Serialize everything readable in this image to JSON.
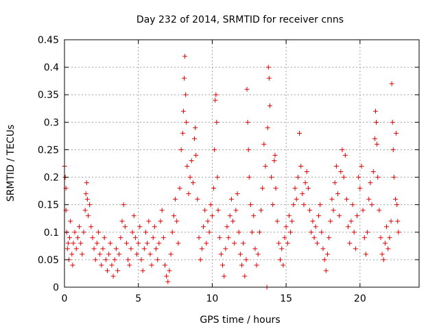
{
  "chart_data": {
    "type": "scatter",
    "title": "Day 232 of 2014, SRMTID for receiver cnns",
    "xlabel": "GPS time / hours",
    "ylabel": "SRMTID / TECUs",
    "xlim": [
      0,
      24
    ],
    "ylim": [
      0,
      0.45
    ],
    "x_ticks": [
      0,
      5,
      10,
      15,
      20
    ],
    "x_tick_labels": [
      "0",
      "5",
      "10",
      "15",
      "20"
    ],
    "y_ticks": [
      0,
      0.05,
      0.1,
      0.15,
      0.2,
      0.25,
      0.3,
      0.35,
      0.4,
      0.45
    ],
    "y_tick_labels": [
      "0",
      "0.05",
      "0.1",
      "0.15",
      "0.2",
      "0.25",
      "0.3",
      "0.35",
      "0.4",
      "0.45"
    ],
    "grid": true,
    "marker": "+",
    "marker_color": "#e00000",
    "series": [
      {
        "name": "SRMTID",
        "points": [
          [
            0.0,
            0.22
          ],
          [
            0.05,
            0.2
          ],
          [
            0.1,
            0.18
          ],
          [
            0.1,
            0.14
          ],
          [
            0.15,
            0.1
          ],
          [
            0.2,
            0.07
          ],
          [
            0.25,
            0.08
          ],
          [
            0.3,
            0.05
          ],
          [
            0.35,
            0.09
          ],
          [
            0.4,
            0.12
          ],
          [
            0.5,
            0.06
          ],
          [
            0.55,
            0.04
          ],
          [
            0.6,
            0.08
          ],
          [
            0.7,
            0.1
          ],
          [
            0.8,
            0.07
          ],
          [
            0.9,
            0.09
          ],
          [
            1.0,
            0.11
          ],
          [
            1.1,
            0.08
          ],
          [
            1.2,
            0.06
          ],
          [
            1.3,
            0.1
          ],
          [
            1.4,
            0.14
          ],
          [
            1.45,
            0.17
          ],
          [
            1.5,
            0.19
          ],
          [
            1.55,
            0.16
          ],
          [
            1.6,
            0.13
          ],
          [
            1.7,
            0.15
          ],
          [
            1.8,
            0.11
          ],
          [
            1.9,
            0.09
          ],
          [
            2.0,
            0.07
          ],
          [
            2.1,
            0.05
          ],
          [
            2.2,
            0.08
          ],
          [
            2.3,
            0.1
          ],
          [
            2.4,
            0.06
          ],
          [
            2.5,
            0.04
          ],
          [
            2.6,
            0.07
          ],
          [
            2.7,
            0.09
          ],
          [
            2.8,
            0.05
          ],
          [
            2.9,
            0.03
          ],
          [
            3.0,
            0.06
          ],
          [
            3.1,
            0.08
          ],
          [
            3.2,
            0.04
          ],
          [
            3.3,
            0.02
          ],
          [
            3.4,
            0.05
          ],
          [
            3.5,
            0.07
          ],
          [
            3.6,
            0.03
          ],
          [
            3.7,
            0.06
          ],
          [
            3.8,
            0.09
          ],
          [
            3.9,
            0.12
          ],
          [
            4.0,
            0.15
          ],
          [
            4.1,
            0.11
          ],
          [
            4.2,
            0.08
          ],
          [
            4.3,
            0.05
          ],
          [
            4.4,
            0.04
          ],
          [
            4.5,
            0.07
          ],
          [
            4.6,
            0.1
          ],
          [
            4.7,
            0.13
          ],
          [
            4.8,
            0.09
          ],
          [
            4.9,
            0.06
          ],
          [
            5.0,
            0.08
          ],
          [
            5.1,
            0.11
          ],
          [
            5.2,
            0.05
          ],
          [
            5.3,
            0.03
          ],
          [
            5.4,
            0.07
          ],
          [
            5.5,
            0.1
          ],
          [
            5.6,
            0.08
          ],
          [
            5.7,
            0.12
          ],
          [
            5.8,
            0.06
          ],
          [
            5.9,
            0.04
          ],
          [
            6.0,
            0.09
          ],
          [
            6.1,
            0.11
          ],
          [
            6.2,
            0.07
          ],
          [
            6.3,
            0.05
          ],
          [
            6.4,
            0.08
          ],
          [
            6.5,
            0.12
          ],
          [
            6.6,
            0.14
          ],
          [
            6.7,
            0.09
          ],
          [
            6.8,
            0.04
          ],
          [
            6.9,
            0.02
          ],
          [
            7.0,
            0.01
          ],
          [
            7.1,
            0.03
          ],
          [
            7.2,
            0.06
          ],
          [
            7.3,
            0.1
          ],
          [
            7.4,
            0.13
          ],
          [
            7.5,
            0.16
          ],
          [
            7.6,
            0.12
          ],
          [
            7.7,
            0.08
          ],
          [
            7.8,
            0.18
          ],
          [
            7.9,
            0.25
          ],
          [
            8.0,
            0.28
          ],
          [
            8.05,
            0.32
          ],
          [
            8.1,
            0.38
          ],
          [
            8.15,
            0.42
          ],
          [
            8.2,
            0.35
          ],
          [
            8.25,
            0.3
          ],
          [
            8.3,
            0.22
          ],
          [
            8.4,
            0.17
          ],
          [
            8.5,
            0.2
          ],
          [
            8.6,
            0.23
          ],
          [
            8.7,
            0.19
          ],
          [
            8.8,
            0.27
          ],
          [
            8.85,
            0.29
          ],
          [
            8.9,
            0.24
          ],
          [
            9.0,
            0.16
          ],
          [
            9.1,
            0.09
          ],
          [
            9.2,
            0.05
          ],
          [
            9.3,
            0.07
          ],
          [
            9.4,
            0.11
          ],
          [
            9.5,
            0.14
          ],
          [
            9.6,
            0.08
          ],
          [
            9.7,
            0.12
          ],
          [
            9.8,
            0.1
          ],
          [
            9.9,
            0.15
          ],
          [
            10.0,
            0.13
          ],
          [
            10.1,
            0.18
          ],
          [
            10.15,
            0.25
          ],
          [
            10.2,
            0.34
          ],
          [
            10.25,
            0.35
          ],
          [
            10.3,
            0.3
          ],
          [
            10.35,
            0.2
          ],
          [
            10.4,
            0.14
          ],
          [
            10.5,
            0.09
          ],
          [
            10.6,
            0.06
          ],
          [
            10.7,
            0.04
          ],
          [
            10.8,
            0.02
          ],
          [
            10.9,
            0.07
          ],
          [
            11.0,
            0.11
          ],
          [
            11.1,
            0.09
          ],
          [
            11.2,
            0.13
          ],
          [
            11.3,
            0.16
          ],
          [
            11.4,
            0.12
          ],
          [
            11.5,
            0.08
          ],
          [
            11.6,
            0.14
          ],
          [
            11.7,
            0.17
          ],
          [
            11.8,
            0.1
          ],
          [
            11.9,
            0.06
          ],
          [
            12.0,
            0.04
          ],
          [
            12.1,
            0.08
          ],
          [
            12.2,
            0.02
          ],
          [
            12.3,
            0.05
          ],
          [
            12.35,
            0.36
          ],
          [
            12.4,
            0.3
          ],
          [
            12.45,
            0.25
          ],
          [
            12.5,
            0.2
          ],
          [
            12.6,
            0.15
          ],
          [
            12.7,
            0.1
          ],
          [
            12.8,
            0.13
          ],
          [
            12.9,
            0.07
          ],
          [
            13.0,
            0.04
          ],
          [
            13.1,
            0.06
          ],
          [
            13.2,
            0.1
          ],
          [
            13.3,
            0.14
          ],
          [
            13.4,
            0.18
          ],
          [
            13.5,
            0.26
          ],
          [
            13.6,
            0.22
          ],
          [
            13.7,
            0.0
          ],
          [
            13.75,
            0.29
          ],
          [
            13.8,
            0.4
          ],
          [
            13.85,
            0.38
          ],
          [
            13.9,
            0.33
          ],
          [
            14.0,
            0.2
          ],
          [
            14.1,
            0.15
          ],
          [
            14.2,
            0.23
          ],
          [
            14.25,
            0.24
          ],
          [
            14.3,
            0.18
          ],
          [
            14.4,
            0.12
          ],
          [
            14.5,
            0.08
          ],
          [
            14.6,
            0.05
          ],
          [
            14.7,
            0.07
          ],
          [
            14.8,
            0.04
          ],
          [
            14.9,
            0.09
          ],
          [
            15.0,
            0.11
          ],
          [
            15.1,
            0.08
          ],
          [
            15.2,
            0.13
          ],
          [
            15.3,
            0.1
          ],
          [
            15.4,
            0.12
          ],
          [
            15.5,
            0.15
          ],
          [
            15.6,
            0.18
          ],
          [
            15.7,
            0.16
          ],
          [
            15.8,
            0.2
          ],
          [
            15.9,
            0.28
          ],
          [
            16.0,
            0.22
          ],
          [
            16.1,
            0.17
          ],
          [
            16.2,
            0.15
          ],
          [
            16.3,
            0.19
          ],
          [
            16.4,
            0.21
          ],
          [
            16.5,
            0.18
          ],
          [
            16.6,
            0.14
          ],
          [
            16.7,
            0.1
          ],
          [
            16.8,
            0.12
          ],
          [
            16.9,
            0.09
          ],
          [
            17.0,
            0.11
          ],
          [
            17.1,
            0.08
          ],
          [
            17.2,
            0.13
          ],
          [
            17.3,
            0.15
          ],
          [
            17.4,
            0.1
          ],
          [
            17.5,
            0.07
          ],
          [
            17.6,
            0.05
          ],
          [
            17.7,
            0.03
          ],
          [
            17.8,
            0.06
          ],
          [
            17.9,
            0.09
          ],
          [
            18.0,
            0.12
          ],
          [
            18.1,
            0.16
          ],
          [
            18.2,
            0.14
          ],
          [
            18.3,
            0.19
          ],
          [
            18.4,
            0.22
          ],
          [
            18.5,
            0.17
          ],
          [
            18.6,
            0.13
          ],
          [
            18.7,
            0.21
          ],
          [
            18.8,
            0.25
          ],
          [
            18.9,
            0.2
          ],
          [
            19.0,
            0.24
          ],
          [
            19.1,
            0.16
          ],
          [
            19.2,
            0.11
          ],
          [
            19.3,
            0.08
          ],
          [
            19.4,
            0.12
          ],
          [
            19.5,
            0.15
          ],
          [
            19.6,
            0.1
          ],
          [
            19.7,
            0.07
          ],
          [
            19.8,
            0.13
          ],
          [
            19.9,
            0.2
          ],
          [
            20.0,
            0.18
          ],
          [
            20.1,
            0.22
          ],
          [
            20.2,
            0.14
          ],
          [
            20.3,
            0.09
          ],
          [
            20.4,
            0.06
          ],
          [
            20.5,
            0.1
          ],
          [
            20.6,
            0.16
          ],
          [
            20.7,
            0.19
          ],
          [
            20.8,
            0.15
          ],
          [
            20.9,
            0.21
          ],
          [
            21.0,
            0.27
          ],
          [
            21.05,
            0.32
          ],
          [
            21.1,
            0.3
          ],
          [
            21.15,
            0.26
          ],
          [
            21.2,
            0.2
          ],
          [
            21.3,
            0.14
          ],
          [
            21.4,
            0.09
          ],
          [
            21.5,
            0.06
          ],
          [
            21.6,
            0.05
          ],
          [
            21.7,
            0.08
          ],
          [
            21.8,
            0.11
          ],
          [
            21.9,
            0.07
          ],
          [
            22.0,
            0.09
          ],
          [
            22.1,
            0.12
          ],
          [
            22.15,
            0.37
          ],
          [
            22.2,
            0.3
          ],
          [
            22.25,
            0.25
          ],
          [
            22.3,
            0.2
          ],
          [
            22.4,
            0.16
          ],
          [
            22.45,
            0.28
          ],
          [
            22.5,
            0.15
          ],
          [
            22.55,
            0.12
          ],
          [
            22.6,
            0.1
          ]
        ]
      }
    ]
  }
}
